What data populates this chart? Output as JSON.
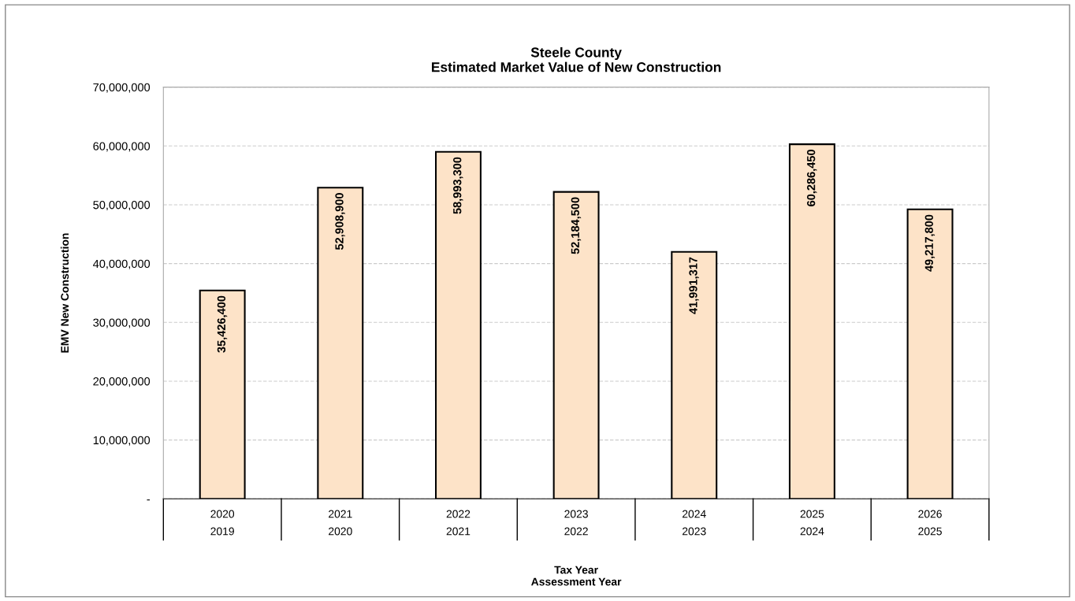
{
  "chart_data": {
    "type": "bar",
    "title": "Steele County\nEstimated Market Value of New Construction",
    "xlabel": "Tax Year\nAssessment Year",
    "ylabel": "EMV New Construction",
    "categories": [
      "2020\n2019",
      "2021\n2020",
      "2022\n2021",
      "2023\n2022",
      "2024\n2023",
      "2025\n2024",
      "2026\n2025"
    ],
    "values": [
      35426400,
      52908900,
      58993300,
      52184500,
      41991317,
      60286450,
      49217800
    ],
    "value_labels": [
      "35,426,400",
      "52,908,900",
      "58,993,300",
      "52,184,500",
      "41,991,317",
      "60,286,450",
      "49,217,800"
    ],
    "color": "#fde3c8",
    "ylim": [
      0,
      70000000
    ],
    "yticks": [
      {
        "value": 0,
        "label": "-"
      },
      {
        "value": 10000000,
        "label": "10,000,000"
      },
      {
        "value": 20000000,
        "label": "20,000,000"
      },
      {
        "value": 30000000,
        "label": "30,000,000"
      },
      {
        "value": 40000000,
        "label": "40,000,000"
      },
      {
        "value": 50000000,
        "label": "50,000,000"
      },
      {
        "value": 60000000,
        "label": "60,000,000"
      },
      {
        "value": 70000000,
        "label": "70,000,000"
      }
    ],
    "grid": "y",
    "legend": false
  }
}
